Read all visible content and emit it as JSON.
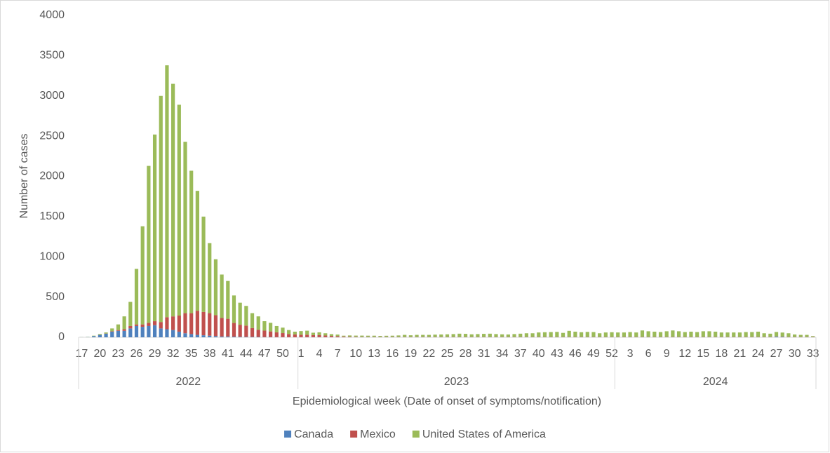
{
  "chart_data": {
    "type": "bar",
    "stacked": true,
    "y_label": "Number of cases",
    "x_label": "Epidemiological week (Date of onset of symptoms/notification)",
    "groups": [
      {
        "name": "2022",
        "categories": [
          "17",
          null,
          null,
          "20",
          null,
          null,
          "23",
          null,
          null,
          "26",
          null,
          null,
          "29",
          null,
          null,
          "32",
          null,
          null,
          "35",
          null,
          null,
          "38",
          null,
          null,
          "41",
          null,
          null,
          "44",
          null,
          null,
          "47",
          null,
          null,
          "50",
          null,
          null
        ]
      },
      {
        "name": "2023",
        "categories": [
          "1",
          null,
          null,
          "4",
          null,
          null,
          "7",
          null,
          null,
          "10",
          null,
          null,
          "13",
          null,
          null,
          "16",
          null,
          null,
          "19",
          null,
          null,
          "22",
          null,
          null,
          "25",
          null,
          null,
          "28",
          null,
          null,
          "31",
          null,
          null,
          "34",
          null,
          null,
          "37",
          null,
          null,
          "40",
          null,
          null,
          "43",
          null,
          null,
          "46",
          null,
          null,
          "49",
          null,
          null,
          "52"
        ]
      },
      {
        "name": "2024",
        "categories": [
          null,
          null,
          "3",
          null,
          null,
          "6",
          null,
          null,
          "9",
          null,
          null,
          "12",
          null,
          null,
          "15",
          null,
          null,
          "18",
          null,
          null,
          "21",
          null,
          null,
          "24",
          null,
          null,
          "27",
          null,
          null,
          "30",
          null,
          null,
          "33"
        ]
      }
    ],
    "series": [
      {
        "name": "Canada",
        "color": "#4f81bd",
        "values": [
          1,
          3,
          15,
          30,
          45,
          70,
          80,
          80,
          110,
          140,
          130,
          140,
          150,
          110,
          100,
          90,
          70,
          50,
          40,
          30,
          25,
          20,
          15,
          10,
          10,
          8,
          6,
          5,
          5,
          4,
          3,
          3,
          2,
          2,
          1,
          1,
          2,
          2,
          2,
          2,
          2,
          2,
          2,
          2,
          2,
          2,
          2,
          2,
          2,
          2,
          2,
          2,
          2,
          2,
          2,
          2,
          2,
          2,
          2,
          2,
          2,
          2,
          2,
          2,
          2,
          2,
          2,
          2,
          2,
          2,
          2,
          2,
          2,
          2,
          2,
          2,
          2,
          2,
          2,
          2,
          2,
          2,
          2,
          2,
          2,
          2,
          2,
          2,
          2,
          2,
          2,
          2,
          2,
          2,
          2,
          2,
          2,
          2,
          2,
          2,
          2,
          2,
          2,
          2,
          2,
          2,
          2,
          2,
          2,
          2,
          2,
          2,
          2,
          2,
          8,
          6,
          2,
          2,
          2,
          2,
          2
        ]
      },
      {
        "name": "Mexico",
        "color": "#c0504d",
        "values": [
          0,
          0,
          0,
          0,
          2,
          5,
          10,
          20,
          30,
          20,
          30,
          40,
          50,
          80,
          150,
          170,
          200,
          250,
          260,
          300,
          290,
          280,
          260,
          230,
          220,
          170,
          150,
          140,
          110,
          90,
          80,
          70,
          60,
          50,
          40,
          35,
          30,
          30,
          25,
          25,
          20,
          15,
          12,
          8,
          6,
          5,
          3,
          3,
          3,
          3,
          3,
          3,
          3,
          3,
          3,
          3,
          3,
          3,
          3,
          3,
          3,
          3,
          3,
          3,
          3,
          3,
          3,
          3,
          3,
          3,
          3,
          3,
          3,
          3,
          3,
          3,
          3,
          3,
          3,
          3,
          3,
          3,
          3,
          3,
          3,
          3,
          3,
          3,
          3,
          3,
          3,
          3,
          3,
          3,
          3,
          3,
          3,
          3,
          3,
          3,
          3,
          3,
          3,
          3,
          3,
          3,
          3,
          3,
          3,
          3,
          3,
          3,
          3,
          3,
          3,
          3,
          3,
          3,
          3,
          3,
          3
        ]
      },
      {
        "name": "United States of America",
        "color": "#9bbb59",
        "values": [
          1,
          2,
          5,
          10,
          13,
          35,
          70,
          160,
          300,
          690,
          1220,
          1950,
          2320,
          2810,
          3130,
          2890,
          2620,
          2130,
          1770,
          1490,
          1185,
          870,
          695,
          540,
          470,
          342,
          274,
          245,
          185,
          166,
          117,
          107,
          78,
          68,
          49,
          34,
          45,
          50,
          30,
          35,
          28,
          22,
          20,
          10,
          15,
          14,
          16,
          15,
          15,
          12,
          14,
          15,
          18,
          25,
          20,
          25,
          25,
          25,
          28,
          30,
          32,
          35,
          40,
          38,
          32,
          35,
          38,
          40,
          35,
          32,
          30,
          35,
          40,
          45,
          45,
          55,
          58,
          60,
          62,
          50,
          75,
          65,
          58,
          62,
          60,
          45,
          55,
          58,
          55,
          55,
          60,
          55,
          80,
          70,
          65,
          60,
          70,
          80,
          70,
          60,
          65,
          60,
          70,
          70,
          65,
          55,
          55,
          55,
          55,
          60,
          60,
          65,
          45,
          40,
          55,
          50,
          45,
          30,
          25,
          25,
          10
        ]
      }
    ],
    "ylim": [
      0,
      4000
    ],
    "yticks": [
      0,
      500,
      1000,
      1500,
      2000,
      2500,
      3000,
      3500,
      4000
    ],
    "grid": false,
    "legend": "bottom"
  }
}
